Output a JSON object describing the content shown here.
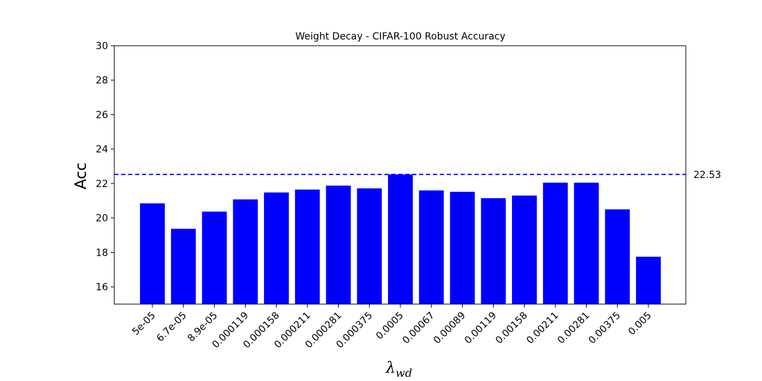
{
  "chart_data": {
    "type": "bar",
    "title": "Weight Decay - CIFAR-100 Robust Accuracy",
    "xlabel_symbol": "λ",
    "xlabel_subscript": "wd",
    "ylabel": "Acc",
    "ylim": [
      15,
      30
    ],
    "yticks": [
      16,
      18,
      20,
      22,
      24,
      26,
      28,
      30
    ],
    "categories": [
      "5e-05",
      "6.7e-05",
      "8.9e-05",
      "0.000119",
      "0.000158",
      "0.000211",
      "0.000281",
      "0.000375",
      "0.0005",
      "0.00067",
      "0.00089",
      "0.00119",
      "0.00158",
      "0.00211",
      "0.00281",
      "0.00375",
      "0.005"
    ],
    "values": [
      20.85,
      19.37,
      20.37,
      21.08,
      21.48,
      21.65,
      21.88,
      21.72,
      22.53,
      21.6,
      21.52,
      21.15,
      21.3,
      22.05,
      22.05,
      20.5,
      17.75
    ],
    "bar_color": "#0000ff",
    "reference_line": {
      "value": 22.53,
      "label": "22.53",
      "color": "#0000ff",
      "style": "dashed"
    },
    "grid": false
  }
}
